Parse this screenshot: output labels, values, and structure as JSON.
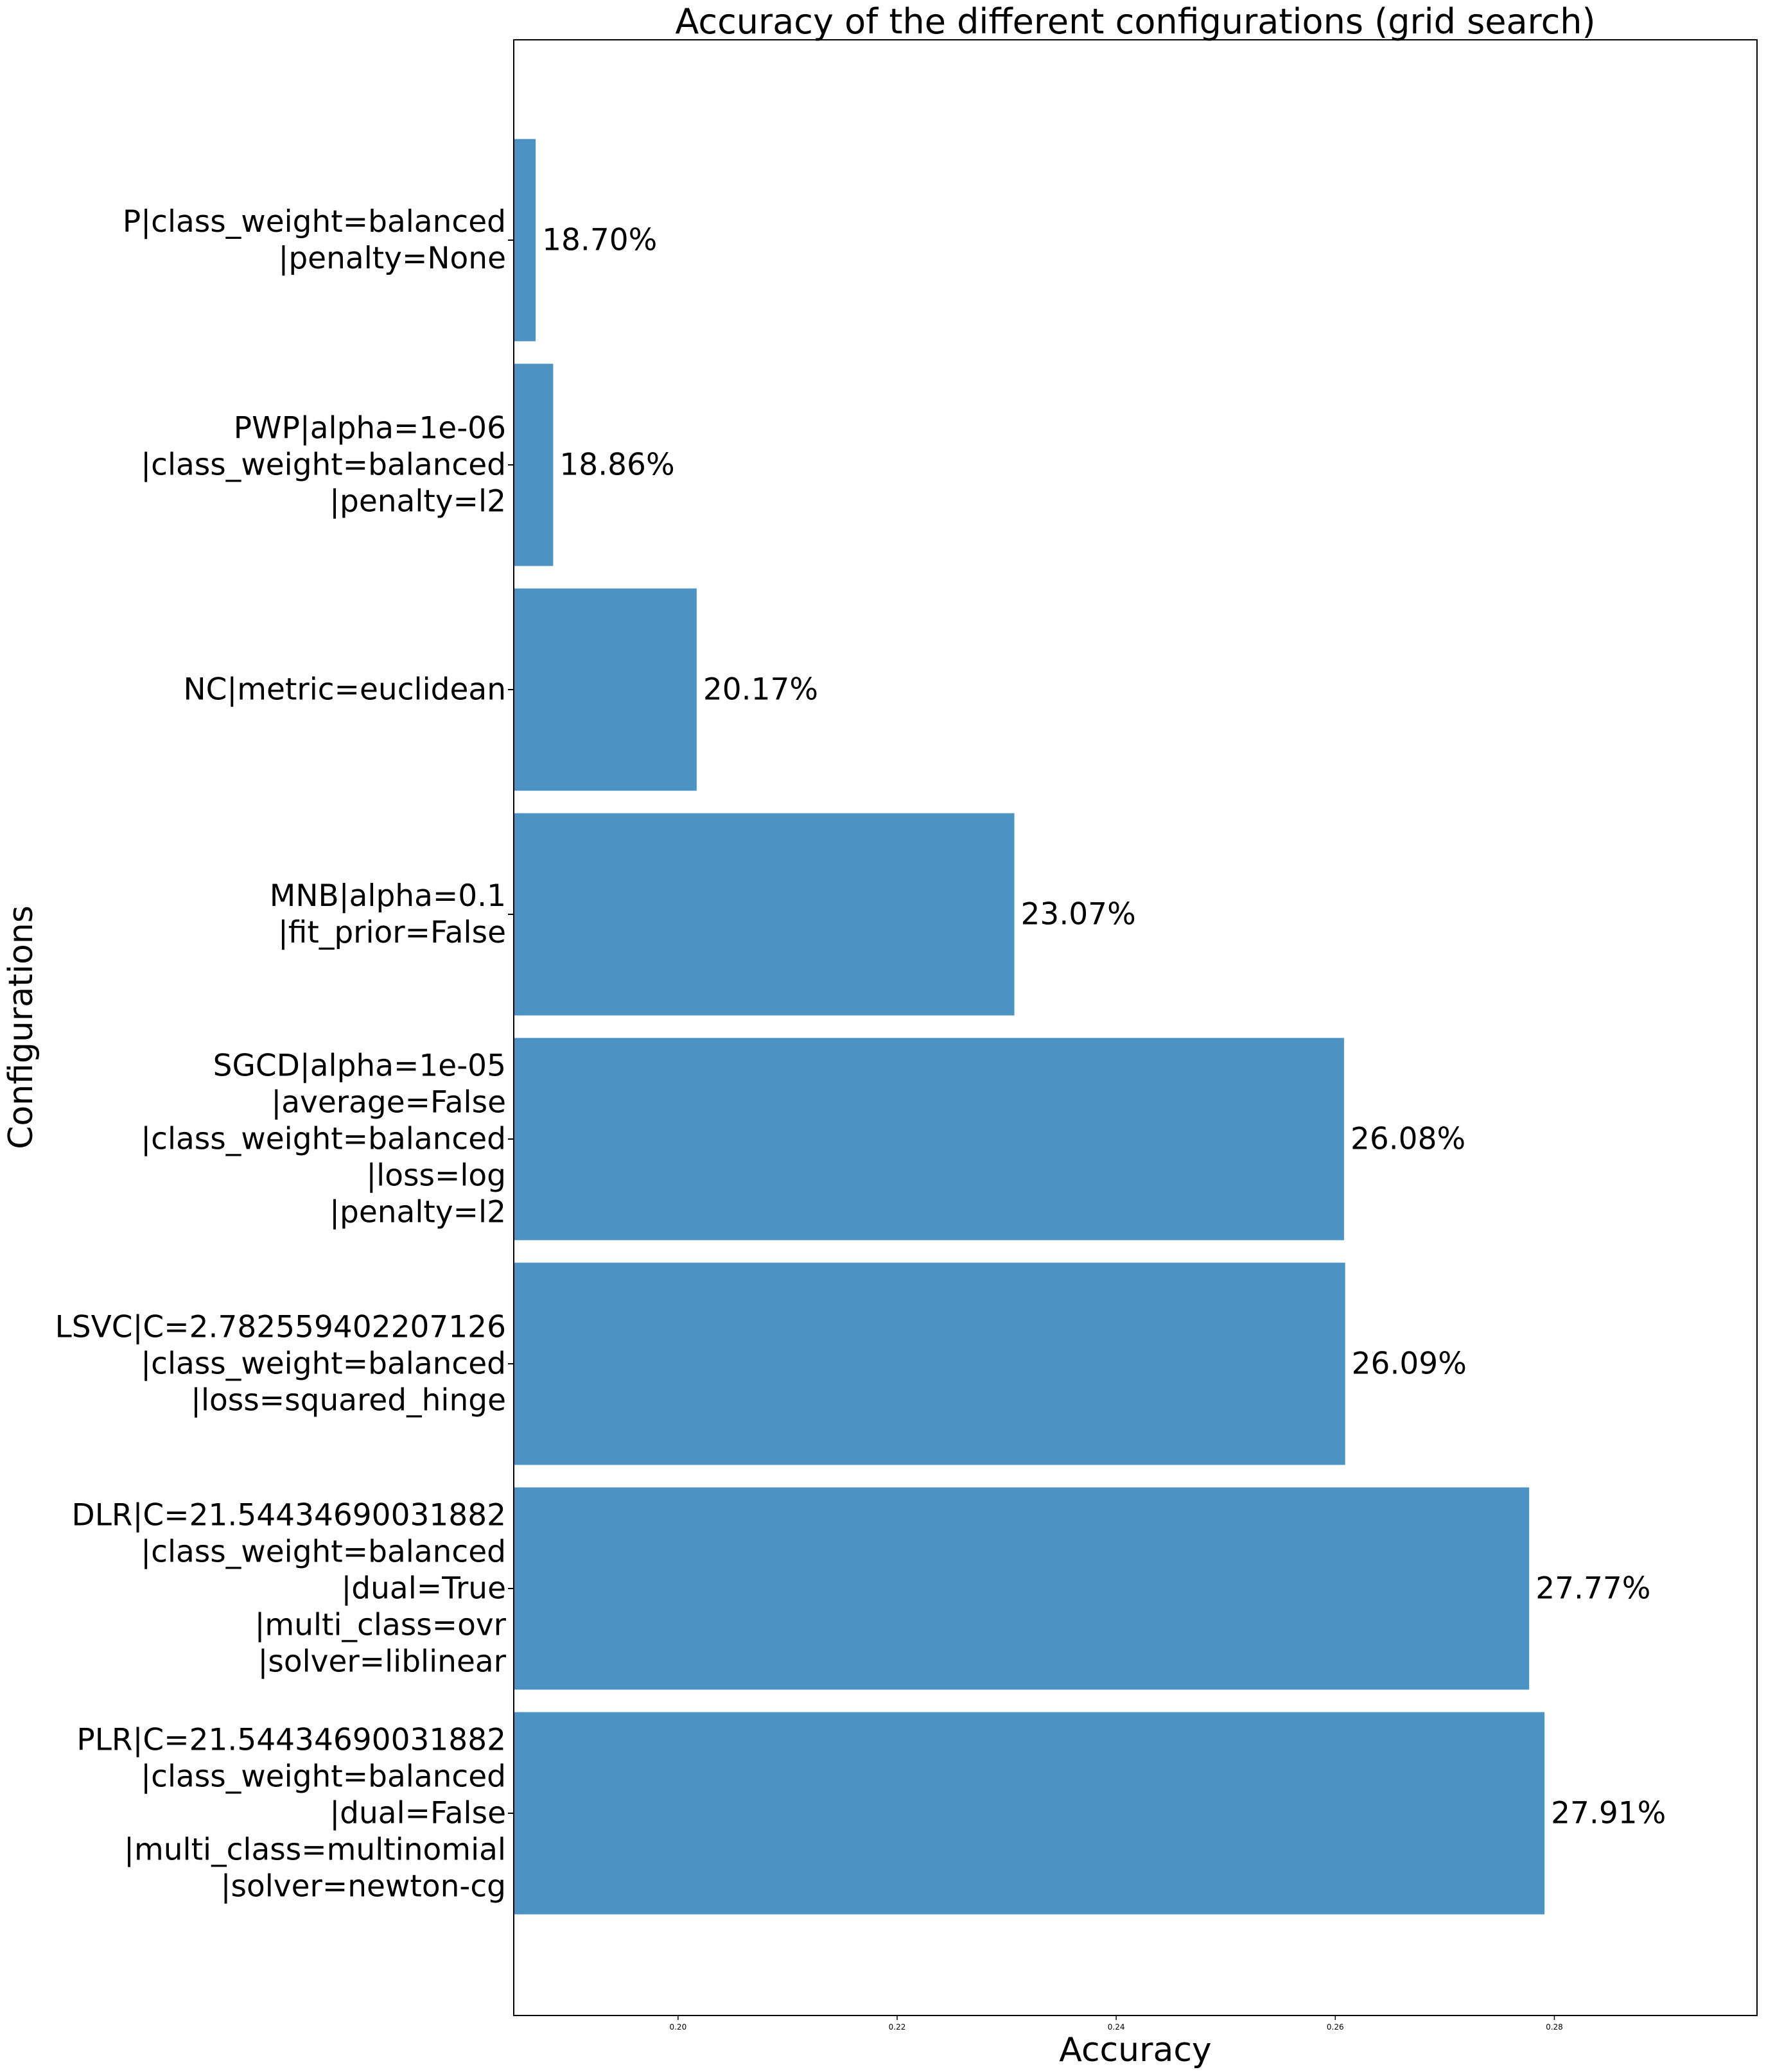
{
  "chart_data": {
    "type": "bar",
    "orientation": "horizontal",
    "title": "Accuracy of the different configurations (grid search)",
    "xlabel": "Accuracy",
    "ylabel": "Configurations",
    "xlim": [
      0.185,
      0.2985
    ],
    "xticks": [
      0.2,
      0.22,
      0.24,
      0.26,
      0.28
    ],
    "xtick_labels": [
      "0.20",
      "0.22",
      "0.24",
      "0.26",
      "0.28"
    ],
    "bar_color": "#4c92c3",
    "grid": false,
    "categories": [
      [
        "P|class_weight=balanced",
        "|penalty=None"
      ],
      [
        "PWP|alpha=1e-06",
        "|class_weight=balanced",
        "|penalty=l2"
      ],
      [
        "NC|metric=euclidean"
      ],
      [
        "MNB|alpha=0.1",
        "|fit_prior=False"
      ],
      [
        "SGCD|alpha=1e-05",
        "|average=False",
        "|class_weight=balanced",
        "|loss=log",
        "|penalty=l2"
      ],
      [
        "LSVC|C=2.782559402207126",
        "|class_weight=balanced",
        "|loss=squared_hinge"
      ],
      [
        "DLR|C=21.54434690031882",
        "|class_weight=balanced",
        "|dual=True",
        "|multi_class=ovr",
        "|solver=liblinear"
      ],
      [
        "PLR|C=21.54434690031882",
        "|class_weight=balanced",
        "|dual=False",
        "|multi_class=multinomial",
        "|solver=newton-cg"
      ]
    ],
    "values": [
      0.187,
      0.1886,
      0.2017,
      0.2307,
      0.2608,
      0.2609,
      0.2777,
      0.2791
    ],
    "value_labels": [
      "18.70%",
      "18.86%",
      "20.17%",
      "23.07%",
      "26.08%",
      "26.09%",
      "27.77%",
      "27.91%"
    ]
  }
}
